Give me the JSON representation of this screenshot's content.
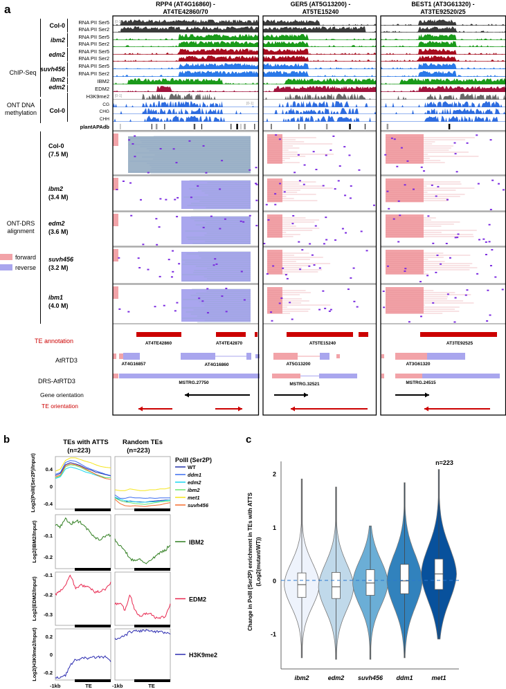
{
  "panel_a": {
    "label": "a",
    "columns": [
      {
        "title_line1": "RPP4 (AT4G16860) -",
        "title_line2": "AT4TE42860/70"
      },
      {
        "title_line1": "GER5 (AT5G13200) -",
        "title_line2": "AT5TE15240"
      },
      {
        "title_line1": "BEST1 (AT3G61320) -",
        "title_line2": "AT3TE92520/25"
      }
    ],
    "groups": {
      "chip": "ChIP-Seq",
      "ont_meth_1": "ONT DNA",
      "ont_meth_2": "methylation",
      "drs_1": "ONT-DRS",
      "drs_2": "alignment"
    },
    "genotypes": [
      "Col-0",
      "ibm2",
      "edm2",
      "suvh456",
      "ibm2",
      "edm2",
      "Col-0"
    ],
    "tracks": [
      "RNA PII Ser5",
      "RNA PII Ser2",
      "RNA PII Ser5",
      "RNA PII Ser2",
      "RNA PII Ser5",
      "RNA PII Ser2",
      "RNA PII Ser5",
      "RNA PII Ser2",
      "IBM2",
      "EDM2",
      "H3K9me2",
      "CG",
      "CHG",
      "CHH",
      "plantAPAdb"
    ],
    "scales": {
      "chip": "[0-3]",
      "h3k9": "[0-1]",
      "meth": "[0-1]"
    },
    "drs_samples": [
      {
        "name": "Col-0",
        "reads": "(7.5 M)"
      },
      {
        "name": "ibm2",
        "reads": "(3.4 M)"
      },
      {
        "name": "edm2",
        "reads": "(3.6 M)"
      },
      {
        "name": "suvh456",
        "reads": "(3.2 M)"
      },
      {
        "name": "ibm1",
        "reads": "(4.0 M)"
      }
    ],
    "legend": {
      "forward": "forward",
      "reverse": "reverse"
    },
    "annotation_rows": {
      "te": "TE annotation",
      "atrtd3": "AtRTD3",
      "drs_atrtd3": "DRS-AtRTD3",
      "gene_orient": "Gene orientation",
      "te_orient": "TE orientation"
    },
    "te_labels": [
      "AT4TE42860",
      "AT4TE42870",
      "AT5TE15240",
      "AT3TE92525"
    ],
    "gene_labels": [
      "AT4G16857",
      "AT4G16860",
      "AT5G13200",
      "AT3G61320"
    ],
    "mstrg_labels": [
      "MSTRG.27750",
      "MSTRG.32521",
      "MSTRG.24515"
    ],
    "colors": {
      "col0": "#3a3a3a",
      "ibm2": "#1a9a1a",
      "edm2": "#a50d1e",
      "suvh456": "#2a78e8",
      "edm2_chip": "#a0143c",
      "h3k9": "#6a6a6a",
      "meth": "#2f6de0",
      "forward": "#f2a3a8",
      "reverse": "#a9a6ee",
      "te": "#cc0000"
    }
  },
  "panel_b": {
    "label": "b",
    "col_titles": [
      {
        "l1": "TEs with ATTS",
        "l2": "(n=223)"
      },
      {
        "l1": "Random TEs",
        "l2": "(n=223)"
      }
    ],
    "legend_title": "PolII (Ser2P)",
    "ylabels": [
      "Log2(PolII(Ser2P)/Input)",
      "Log2(IBM2/Input)",
      "Log2(EDM2/Input)",
      "Log2(H3K9me2/Input)"
    ],
    "xlabel_left": "-1kb",
    "xlabel_te": "TE"
  },
  "panel_c": {
    "label": "c"
  },
  "chart_data": [
    {
      "type": "line",
      "title": "PolII (Ser2P)",
      "ylabel": "Log2(PolII(Ser2P)/Input)",
      "x_labels": [
        "-1kb",
        "TE"
      ],
      "ylim": [
        -0.53,
        0.69
      ],
      "yticks": [
        "0.4",
        "0",
        "-0.4"
      ],
      "panels": [
        "TEs with ATTS (n=223)",
        "Random TEs (n=223)"
      ],
      "series": [
        {
          "name": "WT",
          "color": "#1f2fa8",
          "atts": [
            0.25,
            0.3,
            0.5,
            0.55,
            0.52,
            0.48,
            0.42,
            0.38,
            0.33,
            0.3,
            0.27,
            0.24
          ],
          "random": [
            -0.25,
            -0.33,
            -0.36,
            -0.34,
            -0.36,
            -0.36,
            -0.37,
            -0.35,
            -0.34,
            -0.33,
            -0.32,
            -0.32
          ]
        },
        {
          "name": "ddm1",
          "color": "#3b6cf0",
          "atts": [
            0.28,
            0.32,
            0.55,
            0.6,
            0.58,
            0.52,
            0.45,
            0.4,
            0.36,
            0.32,
            0.28,
            0.25
          ],
          "random": [
            -0.2,
            -0.28,
            -0.28,
            -0.25,
            -0.27,
            -0.27,
            -0.28,
            -0.27,
            -0.28,
            -0.27,
            -0.27,
            -0.27
          ]
        },
        {
          "name": "edm2",
          "color": "#19d6f0",
          "atts": [
            0.18,
            0.22,
            0.4,
            0.45,
            0.42,
            0.38,
            0.33,
            0.3,
            0.26,
            0.22,
            0.2,
            0.2
          ],
          "random": [
            -0.25,
            -0.3,
            -0.33,
            -0.35,
            -0.36,
            -0.37,
            -0.37,
            -0.36,
            -0.36,
            -0.35,
            -0.33,
            -0.32
          ]
        },
        {
          "name": "ibm2",
          "color": "#6ee66e",
          "atts": [
            0.2,
            0.24,
            0.45,
            0.5,
            0.48,
            0.44,
            0.38,
            0.33,
            0.28,
            0.24,
            0.2,
            0.2
          ],
          "random": [
            -0.27,
            -0.33,
            -0.36,
            -0.38,
            -0.4,
            -0.41,
            -0.42,
            -0.4,
            -0.38,
            -0.36,
            -0.35,
            -0.34
          ]
        },
        {
          "name": "met1",
          "color": "#f5e51a",
          "atts": [
            0.35,
            0.4,
            0.6,
            0.66,
            0.66,
            0.62,
            0.58,
            0.55,
            0.5,
            0.46,
            0.44,
            0.43
          ],
          "random": [
            -0.08,
            -0.1,
            -0.1,
            -0.06,
            -0.08,
            -0.1,
            -0.1,
            -0.08,
            -0.08,
            -0.06,
            -0.06,
            -0.03
          ]
        },
        {
          "name": "suvh456",
          "color": "#f56a2a",
          "atts": [
            0.22,
            0.26,
            0.48,
            0.52,
            0.5,
            0.46,
            0.4,
            0.34,
            0.28,
            0.22,
            0.18,
            0.16
          ],
          "random": [
            -0.3,
            -0.4,
            -0.45,
            -0.46,
            -0.45,
            -0.46,
            -0.47,
            -0.45,
            -0.44,
            -0.43,
            -0.4,
            -0.38
          ]
        }
      ]
    },
    {
      "type": "line",
      "ylabel": "Log2(IBM2/Input)",
      "ylim": [
        -0.255,
        -0.003
      ],
      "yticks": [
        "-0.1",
        "-0.2"
      ],
      "series": [
        {
          "name": "IBM2",
          "color": "#2e7d1e",
          "atts": [
            -0.05,
            -0.06,
            -0.02,
            -0.05,
            -0.03,
            -0.04,
            -0.06,
            -0.09,
            -0.11,
            -0.12,
            -0.1,
            -0.1
          ],
          "random": [
            -0.12,
            -0.15,
            -0.17,
            -0.21,
            -0.22,
            -0.21,
            -0.23,
            -0.22,
            -0.2,
            -0.18,
            -0.17,
            -0.14
          ]
        }
      ]
    },
    {
      "type": "line",
      "ylabel": "Log2(EDM2/Input)",
      "ylim": [
        -0.356,
        -0.086
      ],
      "yticks": [
        "-0.1",
        "-0.2",
        "-0.3"
      ],
      "series": [
        {
          "name": "EDM2",
          "color": "#e8264e",
          "atts": [
            -0.2,
            -0.18,
            -0.15,
            -0.1,
            -0.17,
            -0.15,
            -0.16,
            -0.17,
            -0.19,
            -0.18,
            -0.17,
            -0.14
          ],
          "random": [
            -0.25,
            -0.24,
            -0.28,
            -0.2,
            -0.28,
            -0.31,
            -0.3,
            -0.29,
            -0.32,
            -0.32,
            -0.31,
            -0.25
          ]
        }
      ]
    },
    {
      "type": "line",
      "ylabel": "Log2(H3K9me2/Input)",
      "ylim": [
        -0.285,
        0.285
      ],
      "yticks": [
        "0.2",
        "0",
        "-0.2"
      ],
      "series": [
        {
          "name": "H3K9me2",
          "color": "#2b2bb0",
          "atts": [
            -0.27,
            -0.25,
            -0.23,
            -0.12,
            -0.06,
            -0.05,
            -0.04,
            -0.04,
            -0.03,
            -0.03,
            -0.03,
            -0.08
          ],
          "random": [
            0.17,
            0.18,
            0.21,
            0.25,
            0.26,
            0.26,
            0.27,
            0.26,
            0.25,
            0.25,
            0.24,
            0.22
          ]
        }
      ]
    },
    {
      "type": "violin",
      "ylabel_1": "Change in PolII (Ser2P) enrichment in TEs with ATTS",
      "ylabel_2": "(Log2(mutant/WT))",
      "annotation": "n=223",
      "ylim": [
        -1.66,
        2.23
      ],
      "yticks": [
        "2",
        "1",
        "0",
        "-1"
      ],
      "categories": [
        "ibm2",
        "edm2",
        "suvh456",
        "ddm1",
        "met1"
      ],
      "median": [
        -0.08,
        -0.12,
        -0.05,
        -0.01,
        0.12
      ],
      "q1": [
        -0.32,
        -0.34,
        -0.28,
        -0.25,
        -0.17
      ],
      "q3": [
        0.14,
        0.15,
        0.2,
        0.3,
        0.4
      ],
      "min": [
        -1.45,
        -1.48,
        -1.48,
        -1.45,
        -1.1
      ],
      "max": [
        1.9,
        1.75,
        1.02,
        1.83,
        2.08
      ],
      "colors": [
        "#eef3fc",
        "#c0d9ea",
        "#6baed6",
        "#3182bd",
        "#08519c"
      ],
      "reference_line": 0
    }
  ]
}
